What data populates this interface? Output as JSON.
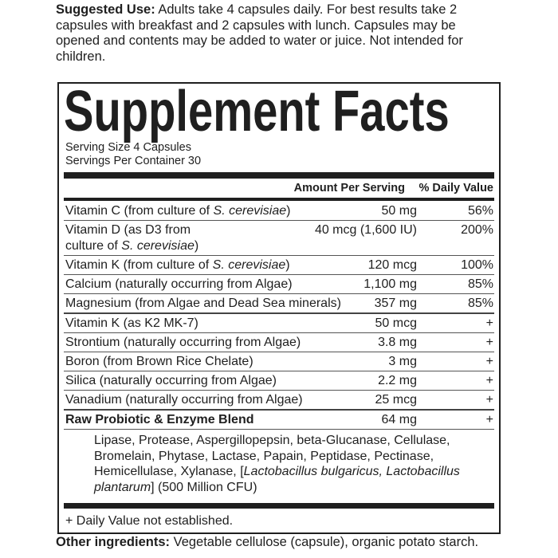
{
  "suggested_use": {
    "label": "Suggested Use:",
    "text": " Adults take 4 capsules daily. For best results take 2 capsules with breakfast and 2 capsules with lunch. Capsules may be opened and contents may be added to water or juice. Not intended for children."
  },
  "facts": {
    "title": "Supplement Facts",
    "serving_size": "Serving Size 4 Capsules",
    "servings_per_container": "Servings Per Container 30",
    "col_amount": "Amount Per Serving",
    "col_dv": "% Daily Value",
    "rows": [
      {
        "pre": "Vitamin C (from culture of ",
        "it": "S. cerevisiae",
        "post": ")",
        "amount": "50 mg",
        "dv": "56%"
      },
      {
        "pre": "Vitamin D (as D3 from culture of ",
        "it": "S. cerevisiae",
        "post": ")",
        "amount": "40 mcg (1,600 IU)",
        "dv": "200%"
      },
      {
        "pre": "Vitamin K (from culture of ",
        "it": "S. cerevisiae",
        "post": ")",
        "amount": "120 mcg",
        "dv": "100%"
      },
      {
        "pre": "Calcium (naturally occurring from Algae)",
        "amount": "1,100 mg",
        "dv": "85%"
      },
      {
        "pre": "Magnesium (from Algae and Dead Sea minerals)",
        "amount": "357 mg",
        "dv": "85%"
      },
      {
        "pre": "Vitamin K (as K2 MK-7)",
        "amount": "50 mcg",
        "dv": "+"
      },
      {
        "pre": "Strontium (naturally occurring from Algae)",
        "amount": "3.8 mg",
        "dv": "+"
      },
      {
        "pre": "Boron (from Brown Rice Chelate)",
        "amount": "3 mg",
        "dv": "+"
      },
      {
        "pre": "Silica (naturally occurring from Algae)",
        "amount": "2.2 mg",
        "dv": "+"
      },
      {
        "pre": "Vanadium (naturally occurring from Algae)",
        "amount": "25 mcg",
        "dv": "+"
      },
      {
        "pre": "Raw Probiotic & Enzyme Blend",
        "amount": "64 mg",
        "dv": "+"
      }
    ],
    "blend": {
      "pre": "Lipase, Protease, Aspergillopepsin, beta-Glucanase, Cellulase, Bromelain, Phytase, Lactase, Papain, Peptidase, Pectinase, Hemicellulase, Xylanase, [",
      "it": "Lactobacillus bulgaricus, Lactobacillus plantarum",
      "post": "] (500 Million CFU)"
    },
    "footnote": "+ Daily Value not established."
  },
  "other": {
    "label": "Other ingredients:",
    "text": " Vegetable cellulose (capsule), organic potato starch."
  }
}
